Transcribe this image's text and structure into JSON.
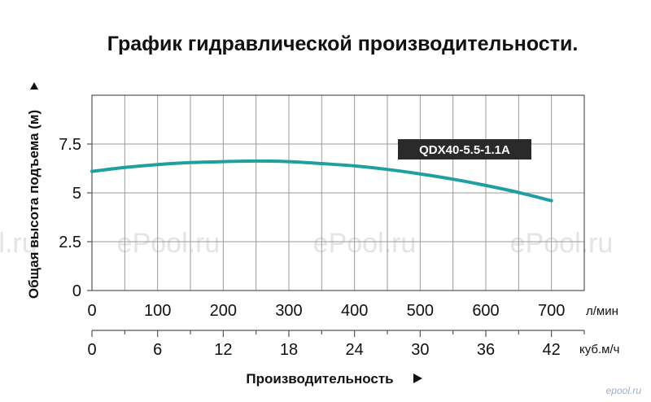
{
  "title": "График гидравлической производительности.",
  "chart_data": {
    "type": "line",
    "ylabel": "Общая высота подъема (м)",
    "xlabel": "Производительность",
    "x_unit_primary": "л/мин",
    "x_unit_secondary": "куб.м/ч",
    "xlim": [
      0,
      750
    ],
    "ylim": [
      0,
      10
    ],
    "y_ticks": [
      "0",
      "2.5",
      "5",
      "7.5"
    ],
    "y_tick_values": [
      0,
      2.5,
      5,
      7.5
    ],
    "x_ticks_primary": [
      "0",
      "100",
      "200",
      "300",
      "400",
      "500",
      "600",
      "700"
    ],
    "x_tick_values_primary": [
      0,
      100,
      200,
      300,
      400,
      500,
      600,
      700
    ],
    "x_ticks_secondary": [
      "0",
      "6",
      "12",
      "18",
      "24",
      "30",
      "36",
      "42"
    ],
    "grid": true,
    "series": [
      {
        "name": "QDX40-5.5-1.1A",
        "color": "#1f9fa0",
        "x": [
          0,
          50,
          100,
          150,
          200,
          250,
          300,
          350,
          400,
          450,
          500,
          550,
          600,
          650,
          700
        ],
        "y": [
          6.1,
          6.3,
          6.45,
          6.55,
          6.6,
          6.63,
          6.6,
          6.5,
          6.38,
          6.2,
          5.97,
          5.7,
          5.38,
          5.02,
          4.6
        ]
      }
    ],
    "legend_color": "#2a2a2a"
  },
  "watermarks": [
    "l.ru",
    "ePool.ru",
    "ePool.ru",
    "ePool.ru"
  ],
  "logo": "epool.ru"
}
